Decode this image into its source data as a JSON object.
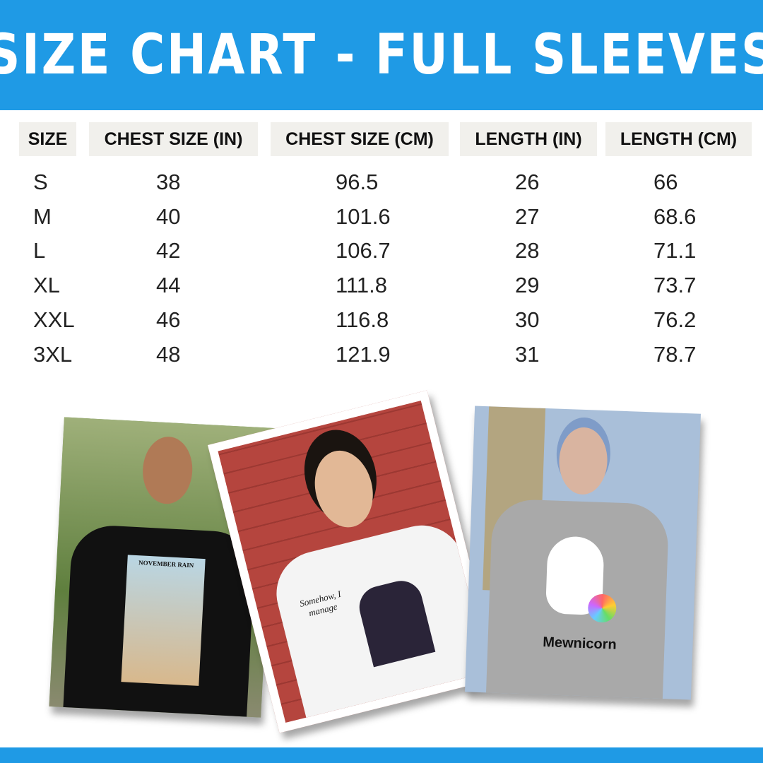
{
  "header": {
    "title": "SIZE CHART - FULL SLEEVES"
  },
  "table": {
    "columns": [
      "SIZE",
      "CHEST SIZE (IN)",
      "CHEST SIZE (CM)",
      "LENGTH (IN)",
      "LENGTH (CM)"
    ],
    "rows": [
      [
        "S",
        "38",
        "96.5",
        "26",
        "66"
      ],
      [
        "M",
        "40",
        "101.6",
        "27",
        "68.6"
      ],
      [
        "L",
        "42",
        "106.7",
        "28",
        "71.1"
      ],
      [
        "XL",
        "44",
        "111.8",
        "29",
        "73.7"
      ],
      [
        "XXL",
        "46",
        "116.8",
        "30",
        "76.2"
      ],
      [
        "3XL",
        "48",
        "121.9",
        "31",
        "78.7"
      ]
    ]
  },
  "photos": [
    {
      "shirt_print": "NOVEMBER RAIN",
      "shirt_color": "#111111"
    },
    {
      "shirt_print": "Somehow, I manage",
      "shirt_color": "#f4f4f4"
    },
    {
      "shirt_print": "Mewnicorn",
      "shirt_color": "#a9a9a9"
    }
  ],
  "colors": {
    "brand_blue": "#1f9ae5",
    "header_cell_bg": "#f1f0ec"
  }
}
